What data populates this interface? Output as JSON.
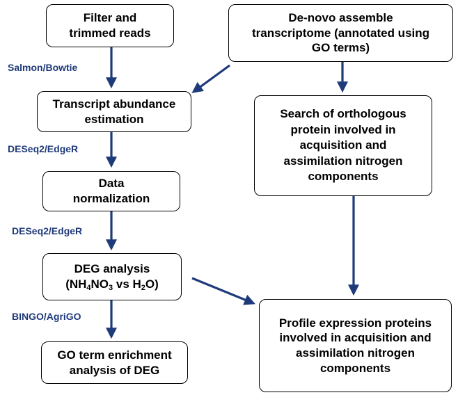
{
  "colors": {
    "arrow": "#1f3a7a",
    "label": "#1f3a7a",
    "box_border": "#000000"
  },
  "boxes": {
    "filter": {
      "line1": "Filter and",
      "line2": "trimmed reads"
    },
    "denovo": {
      "line1": "De-novo assemble",
      "line2": "transcriptome (annotated using",
      "line3": "GO terms)"
    },
    "abundance": {
      "line1": "Transcript abundance",
      "line2": "estimation"
    },
    "search": {
      "line1": "Search of orthologous",
      "line2": "protein involved in",
      "line3": "acquisition and",
      "line4": "assimilation nitrogen",
      "line5": "components"
    },
    "normalization": {
      "line1": "Data",
      "line2": "normalization"
    },
    "deg": {
      "line1": "DEG analysis",
      "open": "(NH",
      "sub1": "4",
      "mid1": "NO",
      "sub2": "3",
      "mid2": " vs H",
      "sub3": "2",
      "close": "O)"
    },
    "goterm": {
      "line1": "GO term enrichment",
      "line2": "analysis of DEG"
    },
    "profile": {
      "line1": "Profile expression proteins",
      "line2": "involved in acquisition and",
      "line3": "assimilation nitrogen",
      "line4": "components"
    }
  },
  "labels": {
    "salmon": "Salmon/Bowtie",
    "deseq1": "DESeq2/EdgeR",
    "deseq2": "DESeq2/EdgeR",
    "bingo": "BINGO/AgriGO"
  }
}
